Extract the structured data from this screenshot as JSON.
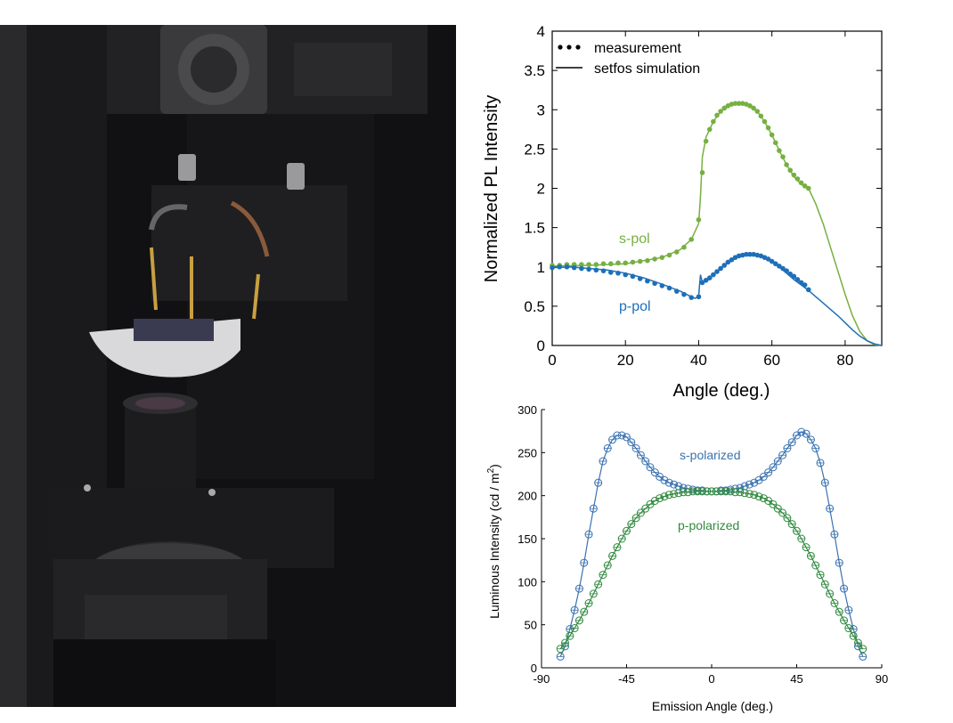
{
  "photo": {
    "description_icon": "goniometer-photo"
  },
  "chart_data": [
    {
      "type": "line",
      "xlabel": "Angle (deg.)",
      "ylabel": "Normalized PL Intensity",
      "xlim": [
        0,
        90
      ],
      "ylim": [
        0,
        4
      ],
      "xticks": [
        0,
        20,
        40,
        60,
        80
      ],
      "yticks": [
        0,
        0.5,
        1,
        1.5,
        2,
        2.5,
        3,
        3.5,
        4
      ],
      "grid": false,
      "legend": {
        "placement": "top-left",
        "entries": [
          "measurement",
          "setfos simulation"
        ]
      },
      "series": [
        {
          "name": "s-pol",
          "color": "#76b041",
          "simulation": {
            "x": [
              0,
              10,
              20,
              30,
              35,
              38,
              40,
              40.5,
              41,
              42,
              44,
              46,
              48,
              50,
              52,
              54,
              56,
              58,
              60,
              62,
              64,
              66,
              68,
              70,
              72,
              74,
              76,
              78,
              80,
              82,
              84,
              86,
              88,
              90
            ],
            "y": [
              1.01,
              1.02,
              1.04,
              1.12,
              1.22,
              1.35,
              1.55,
              1.9,
              2.4,
              2.65,
              2.85,
              2.98,
              3.05,
              3.08,
              3.08,
              3.05,
              2.98,
              2.85,
              2.68,
              2.48,
              2.3,
              2.15,
              2.05,
              2.0,
              1.8,
              1.55,
              1.25,
              0.95,
              0.65,
              0.38,
              0.18,
              0.06,
              0.01,
              0
            ]
          },
          "measurement": {
            "x": [
              0,
              2,
              4,
              6,
              8,
              10,
              12,
              14,
              16,
              18,
              20,
              22,
              24,
              26,
              28,
              30,
              32,
              34,
              36,
              38,
              40,
              41,
              42,
              43,
              44,
              45,
              46,
              47,
              48,
              49,
              50,
              51,
              52,
              53,
              54,
              55,
              56,
              57,
              58,
              59,
              60,
              61,
              62,
              63,
              64,
              65,
              66,
              67,
              68,
              69,
              70
            ],
            "y": [
              1.02,
              1.02,
              1.03,
              1.03,
              1.03,
              1.03,
              1.03,
              1.04,
              1.04,
              1.05,
              1.05,
              1.06,
              1.07,
              1.08,
              1.1,
              1.12,
              1.15,
              1.19,
              1.25,
              1.35,
              1.6,
              2.2,
              2.6,
              2.75,
              2.85,
              2.93,
              2.98,
              3.02,
              3.05,
              3.07,
              3.08,
              3.08,
              3.08,
              3.07,
              3.05,
              3.02,
              2.98,
              2.92,
              2.85,
              2.77,
              2.68,
              2.58,
              2.48,
              2.4,
              2.3,
              2.23,
              2.17,
              2.12,
              2.07,
              2.03,
              2.0
            ]
          },
          "label": "s-pol"
        },
        {
          "name": "p-pol",
          "color": "#1e6fb8",
          "simulation": {
            "x": [
              0,
              5,
              10,
              15,
              20,
              25,
              30,
              35,
              38,
              39,
              40,
              40.2,
              40.5,
              41,
              42,
              44,
              46,
              48,
              50,
              52,
              54,
              56,
              58,
              60,
              62,
              64,
              66,
              68,
              70,
              72,
              74,
              76,
              78,
              80,
              82,
              84,
              86,
              88,
              90
            ],
            "y": [
              0.99,
              1.0,
              0.98,
              0.96,
              0.92,
              0.86,
              0.78,
              0.69,
              0.62,
              0.6,
              0.62,
              0.75,
              0.9,
              0.8,
              0.82,
              0.9,
              0.98,
              1.05,
              1.11,
              1.15,
              1.16,
              1.15,
              1.12,
              1.07,
              1.0,
              0.92,
              0.84,
              0.77,
              0.7,
              0.62,
              0.54,
              0.46,
              0.38,
              0.29,
              0.2,
              0.12,
              0.06,
              0.02,
              0
            ]
          },
          "measurement": {
            "x": [
              0,
              2,
              4,
              6,
              8,
              10,
              12,
              14,
              16,
              18,
              20,
              22,
              24,
              26,
              28,
              30,
              32,
              34,
              36,
              38,
              40,
              41,
              42,
              43,
              44,
              45,
              46,
              47,
              48,
              49,
              50,
              51,
              52,
              53,
              54,
              55,
              56,
              57,
              58,
              59,
              60,
              61,
              62,
              63,
              64,
              65,
              66,
              67,
              68,
              69,
              70
            ],
            "y": [
              0.99,
              1.0,
              1.0,
              0.99,
              0.98,
              0.97,
              0.96,
              0.95,
              0.93,
              0.92,
              0.9,
              0.88,
              0.85,
              0.82,
              0.79,
              0.76,
              0.73,
              0.69,
              0.65,
              0.61,
              0.62,
              0.8,
              0.83,
              0.86,
              0.9,
              0.94,
              0.98,
              1.02,
              1.06,
              1.09,
              1.12,
              1.14,
              1.15,
              1.16,
              1.16,
              1.16,
              1.15,
              1.14,
              1.12,
              1.1,
              1.07,
              1.04,
              1.01,
              0.98,
              0.95,
              0.91,
              0.88,
              0.84,
              0.8,
              0.77,
              0.71
            ]
          },
          "label": "p-pol"
        }
      ]
    },
    {
      "type": "line",
      "xlabel": "Emission Angle (deg.)",
      "ylabel": "Luminous Intensity (cd / m",
      "ylabel_sup": "2",
      "ylabel_end": ")",
      "xlim": [
        -90,
        90
      ],
      "ylim": [
        0,
        300
      ],
      "xticks": [
        -90,
        -45,
        0,
        45,
        90
      ],
      "yticks": [
        0,
        50,
        100,
        150,
        200,
        250,
        300
      ],
      "grid": false,
      "series": [
        {
          "name": "s-polarized",
          "color": "#3a72b0",
          "x": [
            -80,
            -77.5,
            -75,
            -72.5,
            -70,
            -67.5,
            -65,
            -62.5,
            -60,
            -57.5,
            -55,
            -52.5,
            -50,
            -47.5,
            -45,
            -42.5,
            -40,
            -37.5,
            -35,
            -32.5,
            -30,
            -27.5,
            -25,
            -22.5,
            -20,
            -17.5,
            -15,
            -12.5,
            -10,
            -7.5,
            -5,
            -2.5,
            0,
            2.5,
            5,
            7.5,
            10,
            12.5,
            15,
            17.5,
            20,
            22.5,
            25,
            27.5,
            30,
            32.5,
            35,
            37.5,
            40,
            42.5,
            45,
            47.5,
            50,
            52.5,
            55,
            57.5,
            60,
            62.5,
            65,
            67.5,
            70,
            72.5,
            75,
            77.5,
            80
          ],
          "y": [
            13,
            25,
            45,
            67,
            92,
            122,
            155,
            185,
            215,
            240,
            255,
            265,
            270,
            270,
            268,
            262,
            255,
            247,
            240,
            233,
            227,
            222,
            218,
            215,
            213,
            211,
            209,
            208,
            207,
            206,
            206,
            205,
            205,
            205,
            206,
            206,
            207,
            208,
            209,
            211,
            213,
            215,
            218,
            222,
            227,
            233,
            240,
            247,
            255,
            262,
            270,
            274,
            272,
            265,
            255,
            238,
            215,
            185,
            155,
            122,
            92,
            67,
            45,
            25,
            13
          ]
        },
        {
          "name": "p-polarized",
          "color": "#2f8a3d",
          "x": [
            -80,
            -77.5,
            -75,
            -72.5,
            -70,
            -67.5,
            -65,
            -62.5,
            -60,
            -57.5,
            -55,
            -52.5,
            -50,
            -47.5,
            -45,
            -42.5,
            -40,
            -37.5,
            -35,
            -32.5,
            -30,
            -27.5,
            -25,
            -22.5,
            -20,
            -17.5,
            -15,
            -12.5,
            -10,
            -7.5,
            -5,
            -2.5,
            0,
            2.5,
            5,
            7.5,
            10,
            12.5,
            15,
            17.5,
            20,
            22.5,
            25,
            27.5,
            30,
            32.5,
            35,
            37.5,
            40,
            42.5,
            45,
            47.5,
            50,
            52.5,
            55,
            57.5,
            60,
            62.5,
            65,
            67.5,
            70,
            72.5,
            75,
            77.5,
            80
          ],
          "y": [
            22,
            29,
            37,
            46,
            55,
            65,
            75,
            86,
            97,
            108,
            119,
            130,
            140,
            150,
            159,
            167,
            174,
            180,
            185,
            190,
            194,
            197,
            199,
            201,
            202,
            203,
            204,
            204,
            205,
            205,
            205,
            205,
            205,
            205,
            205,
            205,
            205,
            204,
            204,
            203,
            202,
            201,
            199,
            197,
            194,
            190,
            185,
            180,
            174,
            167,
            159,
            150,
            140,
            130,
            119,
            108,
            97,
            86,
            75,
            65,
            55,
            46,
            37,
            29,
            22
          ]
        }
      ],
      "annotations": [
        "s-polarized",
        "p-polarized"
      ]
    }
  ]
}
